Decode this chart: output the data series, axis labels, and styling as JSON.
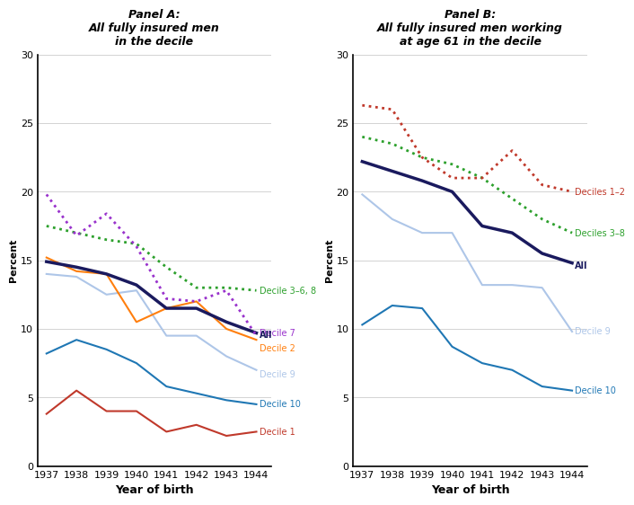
{
  "years": [
    1937,
    1938,
    1939,
    1940,
    1941,
    1942,
    1943,
    1944
  ],
  "panel_a": {
    "title_line1": "Panel A:",
    "title_line2": "All fully insured men",
    "title_line3": "in the decile",
    "series": {
      "decile_36_8": {
        "label": "Decile 3–6, 8",
        "color": "#2ca02c",
        "linestyle": "dotted",
        "linewidth": 2.0,
        "values": [
          17.5,
          17.0,
          16.5,
          16.2,
          14.5,
          13.0,
          13.0,
          12.8
        ]
      },
      "decile_7": {
        "label": "Decile 7",
        "color": "#9932CC",
        "linestyle": "dotted",
        "linewidth": 2.0,
        "values": [
          19.8,
          16.8,
          18.4,
          16.0,
          12.2,
          12.0,
          12.8,
          9.5
        ]
      },
      "all": {
        "label": "All",
        "color": "#1a1a5e",
        "linestyle": "solid",
        "linewidth": 2.5,
        "values": [
          14.9,
          14.5,
          14.0,
          13.2,
          11.5,
          11.5,
          10.5,
          9.7
        ]
      },
      "decile_2": {
        "label": "Decile 2",
        "color": "#ff7f0e",
        "linestyle": "solid",
        "linewidth": 1.5,
        "values": [
          15.2,
          14.2,
          14.0,
          10.5,
          11.5,
          12.0,
          10.0,
          9.2
        ]
      },
      "decile_9": {
        "label": "Decile 9",
        "color": "#aec6e8",
        "linestyle": "solid",
        "linewidth": 1.5,
        "values": [
          14.0,
          13.8,
          12.5,
          12.8,
          9.5,
          9.5,
          8.0,
          7.0
        ]
      },
      "decile_10": {
        "label": "Decile 10",
        "color": "#1f77b4",
        "linestyle": "solid",
        "linewidth": 1.5,
        "values": [
          8.2,
          9.2,
          8.5,
          7.5,
          5.8,
          5.3,
          4.8,
          4.5
        ]
      },
      "decile_1": {
        "label": "Decile 1",
        "color": "#c0392b",
        "linestyle": "solid",
        "linewidth": 1.5,
        "values": [
          3.8,
          5.5,
          4.0,
          4.0,
          2.5,
          3.0,
          2.2,
          2.5
        ]
      }
    },
    "ylabel": "Percent",
    "xlabel": "Year of birth",
    "ylim": [
      0,
      30
    ],
    "yticks": [
      0,
      5,
      10,
      15,
      20,
      25,
      30
    ]
  },
  "panel_b": {
    "title_line1": "Panel B:",
    "title_line2": "All fully insured men working",
    "title_line3": "at age 61 in the decile",
    "series": {
      "deciles_12": {
        "label": "Deciles 1–2",
        "color": "#c0392b",
        "linestyle": "dotted",
        "linewidth": 2.0,
        "values": [
          26.3,
          26.0,
          22.5,
          21.0,
          21.0,
          23.0,
          20.5,
          20.0
        ]
      },
      "deciles_38": {
        "label": "Deciles 3–8",
        "color": "#2ca02c",
        "linestyle": "dotted",
        "linewidth": 2.0,
        "values": [
          24.0,
          23.5,
          22.5,
          22.0,
          21.0,
          19.5,
          18.0,
          17.0
        ]
      },
      "all": {
        "label": "All",
        "color": "#1a1a5e",
        "linestyle": "solid",
        "linewidth": 2.5,
        "values": [
          22.2,
          21.5,
          20.8,
          20.0,
          17.5,
          17.0,
          15.5,
          14.8
        ]
      },
      "decile_9": {
        "label": "Decile 9",
        "color": "#aec6e8",
        "linestyle": "solid",
        "linewidth": 1.5,
        "values": [
          19.8,
          18.0,
          17.0,
          17.0,
          13.2,
          13.2,
          13.0,
          9.8
        ]
      },
      "decile_10": {
        "label": "Decile 10",
        "color": "#1f77b4",
        "linestyle": "solid",
        "linewidth": 1.5,
        "values": [
          10.3,
          11.7,
          11.5,
          8.7,
          7.5,
          7.0,
          5.8,
          5.5
        ]
      }
    },
    "ylabel": "Percent",
    "xlabel": "Year of birth",
    "ylim": [
      0,
      30
    ],
    "yticks": [
      0,
      5,
      10,
      15,
      20,
      25,
      30
    ]
  }
}
